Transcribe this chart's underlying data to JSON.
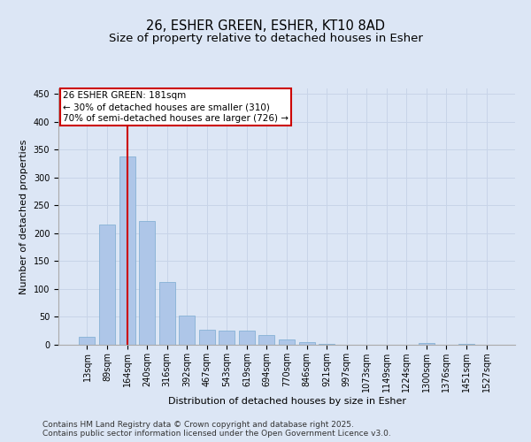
{
  "title1": "26, ESHER GREEN, ESHER, KT10 8AD",
  "title2": "Size of property relative to detached houses in Esher",
  "xlabel": "Distribution of detached houses by size in Esher",
  "ylabel": "Number of detached properties",
  "categories": [
    "13sqm",
    "89sqm",
    "164sqm",
    "240sqm",
    "316sqm",
    "392sqm",
    "467sqm",
    "543sqm",
    "619sqm",
    "694sqm",
    "770sqm",
    "846sqm",
    "921sqm",
    "997sqm",
    "1073sqm",
    "1149sqm",
    "1224sqm",
    "1300sqm",
    "1376sqm",
    "1451sqm",
    "1527sqm"
  ],
  "values": [
    15,
    215,
    338,
    222,
    112,
    53,
    27,
    26,
    25,
    18,
    9,
    5,
    2,
    0,
    0,
    0,
    0,
    3,
    0,
    2,
    0
  ],
  "bar_color": "#aec6e8",
  "bar_edge_color": "#7aabd0",
  "red_line_index": 2,
  "annotation_text": "26 ESHER GREEN: 181sqm\n← 30% of detached houses are smaller (310)\n70% of semi-detached houses are larger (726) →",
  "annotation_box_color": "#ffffff",
  "annotation_box_edge": "#cc0000",
  "ylim": [
    0,
    460
  ],
  "yticks": [
    0,
    50,
    100,
    150,
    200,
    250,
    300,
    350,
    400,
    450
  ],
  "grid_color": "#c8d4e8",
  "background_color": "#dce6f5",
  "footer1": "Contains HM Land Registry data © Crown copyright and database right 2025.",
  "footer2": "Contains public sector information licensed under the Open Government Licence v3.0.",
  "title_fontsize": 10.5,
  "subtitle_fontsize": 9.5,
  "axis_label_fontsize": 8,
  "tick_fontsize": 7,
  "annotation_fontsize": 7.5,
  "footer_fontsize": 6.5
}
